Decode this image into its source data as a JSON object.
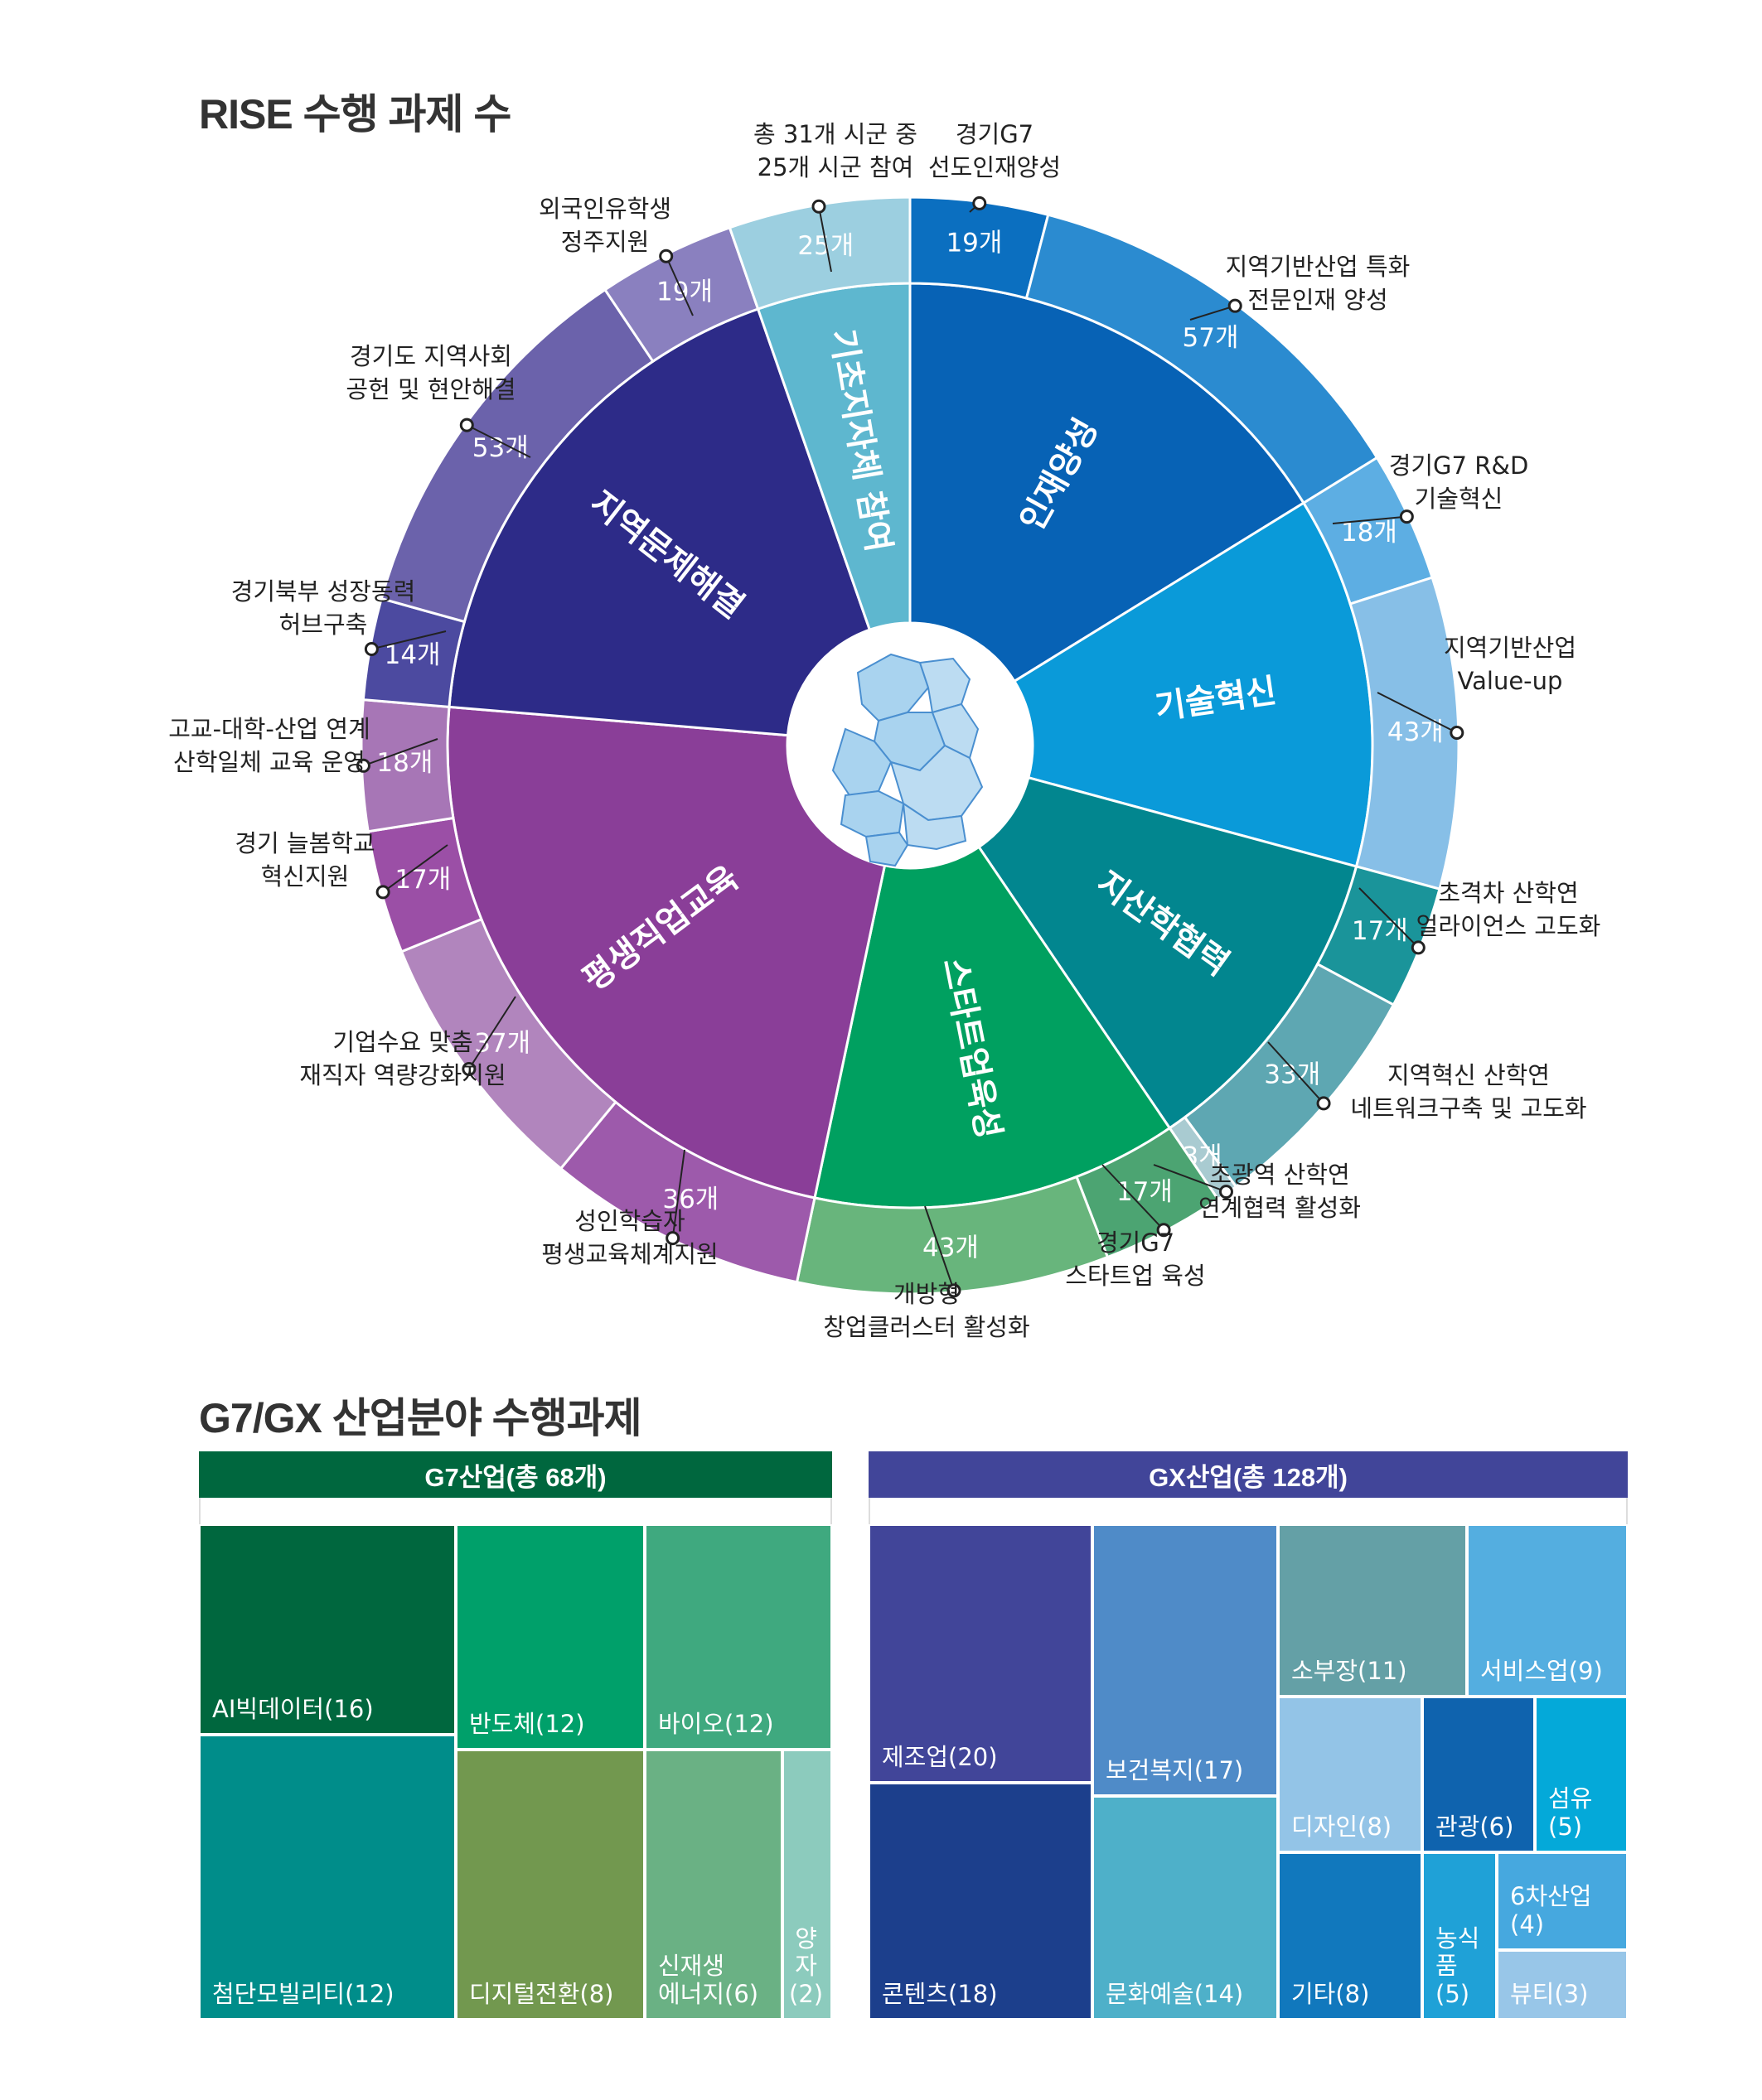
{
  "section1_title": "RISE 수행 과제 수",
  "section2_title": "G7/GX 산업분야 수행과제",
  "chart_data": [
    {
      "type": "sunburst",
      "title": "RISE 수행 과제 수",
      "categories": [
        {
          "name": "인재양성",
          "color": "#0762b5",
          "children": [
            {
              "name": "경기G7 선도인재양성",
              "value": 19,
              "label": "19개",
              "color": "#0b6fc0"
            },
            {
              "name": "지역기반산업 특화 전문인재 양성",
              "value": 57,
              "label": "57개",
              "color": "#2b8bd0"
            }
          ]
        },
        {
          "name": "기술혁신",
          "color": "#0a9ad9",
          "children": [
            {
              "name": "경기G7 R&D 기술혁신",
              "value": 18,
              "label": "18개",
              "color": "#5daee3"
            },
            {
              "name": "지역기반산업 Value-up",
              "value": 43,
              "label": "43개",
              "color": "#87bfe7"
            }
          ]
        },
        {
          "name": "지산학협력",
          "color": "#02868f",
          "children": [
            {
              "name": "초격차 산학연 얼라이언스 고도화",
              "value": 17,
              "label": "17개",
              "color": "#1a949a"
            },
            {
              "name": "지역혁신 산학연 네트워크구축 및 고도화",
              "value": 33,
              "label": "33개",
              "color": "#5ea7b2"
            },
            {
              "name": "초광역 산학연 연계협력 활성화",
              "value": 3,
              "label": "3개",
              "color": "#a9cbd1"
            }
          ]
        },
        {
          "name": "스타트업육성",
          "color": "#00a060",
          "children": [
            {
              "name": "경기G7 스타트업 육성",
              "value": 17,
              "label": "17개",
              "color": "#4ca472"
            },
            {
              "name": "개방형 창업클러스터 활성화",
              "value": 43,
              "label": "43개",
              "color": "#68b57c"
            }
          ]
        },
        {
          "name": "평생직업교육",
          "color": "#8a3e98",
          "children": [
            {
              "name": "성인학습자 평생교육체계지원",
              "value": 36,
              "label": "36개",
              "color": "#9d5aab"
            },
            {
              "name": "기업수요 맞춤 재직자 역량강화지원",
              "value": 37,
              "label": "37개",
              "color": "#b185bd"
            },
            {
              "name": "경기 늘봄학교 혁신지원",
              "value": 17,
              "label": "17개",
              "color": "#9b4fa6"
            },
            {
              "name": "고교-대학-산업 연계 산학일체 교육 운영",
              "value": 18,
              "label": "18개",
              "color": "#a776b6"
            }
          ]
        },
        {
          "name": "지역문제해결",
          "color": "#2d2b88",
          "children": [
            {
              "name": "경기북부 성장동력 허브구축",
              "value": 14,
              "label": "14개",
              "color": "#4c4aa0"
            },
            {
              "name": "경기도 지역사회 공헌 및 현안해결",
              "value": 53,
              "label": "53개",
              "color": "#6b62ab"
            },
            {
              "name": "외국인유학생 정주지원",
              "value": 19,
              "label": "19개",
              "color": "#8a80bf"
            }
          ]
        },
        {
          "name": "기초지자체 참여",
          "color": "#5eb7cf",
          "children": [
            {
              "name": "총 31개 시군 중 25개 시군 참여",
              "value": 25,
              "label": "25개",
              "color": "#9ccfe0"
            }
          ]
        }
      ]
    },
    {
      "type": "treemap",
      "title": "G7산업(총 68개)",
      "items": [
        {
          "name": "AI빅데이터",
          "value": 16,
          "label": "AI빅데이터(16)",
          "color": "#00673e"
        },
        {
          "name": "첨단모빌리티",
          "value": 12,
          "label": "첨단모빌리티(12)",
          "color": "#008d8a"
        },
        {
          "name": "반도체",
          "value": 12,
          "label": "반도체(12)",
          "color": "#00a06a"
        },
        {
          "name": "바이오",
          "value": 12,
          "label": "바이오(12)",
          "color": "#3fa97f"
        },
        {
          "name": "디지털전환",
          "value": 8,
          "label": "디지털전환(8)",
          "color": "#72984f"
        },
        {
          "name": "신재생에너지",
          "value": 6,
          "label": "신재생\n에너지(6)",
          "color": "#6ab184"
        },
        {
          "name": "양자",
          "value": 2,
          "label": "양\n자\n(2)",
          "color": "#8ccbbd"
        }
      ]
    },
    {
      "type": "treemap",
      "title": "GX산업(총 128개)",
      "items": [
        {
          "name": "제조업",
          "value": 20,
          "label": "제조업(20)",
          "color": "#414599"
        },
        {
          "name": "콘텐츠",
          "value": 18,
          "label": "콘텐츠(18)",
          "color": "#1c3f8c"
        },
        {
          "name": "보건복지",
          "value": 17,
          "label": "보건복지(17)",
          "color": "#4f8bc8"
        },
        {
          "name": "문화예술",
          "value": 14,
          "label": "문화예술(14)",
          "color": "#4eb0c9"
        },
        {
          "name": "소부장",
          "value": 11,
          "label": "소부장(11)",
          "color": "#64a0a6"
        },
        {
          "name": "서비스업",
          "value": 9,
          "label": "서비스업(9)",
          "color": "#54aee0"
        },
        {
          "name": "디자인",
          "value": 8,
          "label": "디자인(8)",
          "color": "#93c4e7"
        },
        {
          "name": "관광",
          "value": 6,
          "label": "관광(6)",
          "color": "#0f63ae"
        },
        {
          "name": "섬유",
          "value": 5,
          "label": "섬유(5)",
          "color": "#04a9d9"
        },
        {
          "name": "기타",
          "value": 8,
          "label": "기타(8)",
          "color": "#1178bd"
        },
        {
          "name": "농식품",
          "value": 5,
          "label": "농식품\n(5)",
          "color": "#1fa1d7"
        },
        {
          "name": "6차산업",
          "value": 4,
          "label": "6차산업\n(4)",
          "color": "#46a8df"
        },
        {
          "name": "뷰티",
          "value": 3,
          "label": "뷰티(3)",
          "color": "#98c6e8"
        }
      ]
    }
  ],
  "colors": {
    "title": "#333333",
    "g7_header": "#00673e",
    "gx_header": "#414599",
    "map_fill": "#a9d3ef",
    "map_stroke": "#4a8fd0"
  },
  "icons": {
    "center": "gyeonggi-map-icon"
  }
}
